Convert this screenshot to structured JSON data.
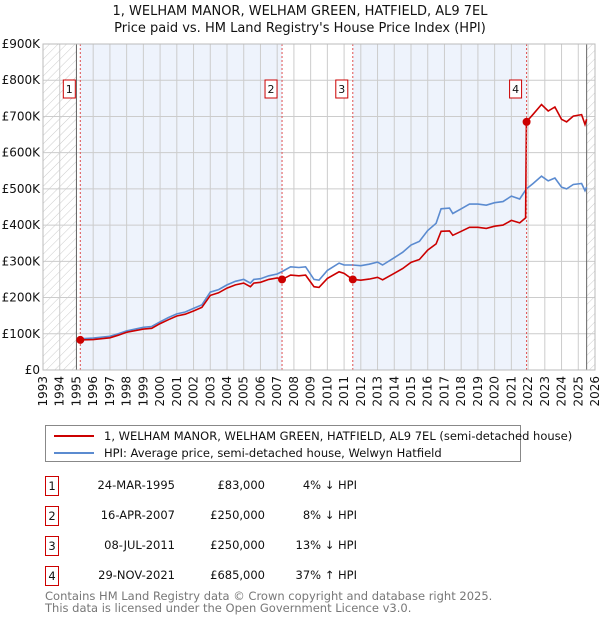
{
  "title": "1, WELHAM MANOR, WELHAM GREEN, HATFIELD, AL9 7EL",
  "subtitle": "Price paid vs. HM Land Registry's House Price Index (HPI)",
  "chart_data": {
    "type": "line",
    "xlim": [
      1993,
      2026
    ],
    "ylim": [
      0,
      900000
    ],
    "yticks": [
      0,
      100000,
      200000,
      300000,
      400000,
      500000,
      600000,
      700000,
      800000,
      900000
    ],
    "ytick_labels": [
      "£0",
      "£100K",
      "£200K",
      "£300K",
      "£400K",
      "£500K",
      "£600K",
      "£700K",
      "£800K",
      "£900K"
    ],
    "xtick_labels": [
      "1993",
      "1994",
      "1995",
      "1996",
      "1997",
      "1998",
      "1999",
      "2000",
      "2001",
      "2002",
      "2003",
      "2004",
      "2005",
      "2006",
      "2007",
      "2008",
      "2009",
      "2010",
      "2011",
      "2012",
      "2013",
      "2014",
      "2015",
      "2016",
      "2017",
      "2018",
      "2019",
      "2020",
      "2021",
      "2022",
      "2023",
      "2024",
      "2025",
      "2026"
    ],
    "grid": true,
    "series": [
      {
        "name": "1, WELHAM MANOR, WELHAM GREEN, HATFIELD, AL9 7EL (semi-detached house)",
        "color": "#cc0000",
        "x": [
          1995.2,
          1996,
          1997,
          1997.5,
          1998,
          1999,
          1999.5,
          2000,
          2000.5,
          2001,
          2001.5,
          2002,
          2002.5,
          2003,
          2003.5,
          2004,
          2004.5,
          2005,
          2005.4,
          2005.6,
          2006,
          2006.5,
          2007,
          2007.3,
          2007.8,
          2008.3,
          2008.7,
          2009.2,
          2009.5,
          2010,
          2010.7,
          2011,
          2011.5,
          2012,
          2012.5,
          2013,
          2013.3,
          2014,
          2014.5,
          2015,
          2015.5,
          2016,
          2016.5,
          2016.8,
          2017.3,
          2017.5,
          2018,
          2018.5,
          2019,
          2019.5,
          2020,
          2020.5,
          2021,
          2021.5,
          2021.85,
          2021.9,
          2022.3,
          2022.8,
          2023.2,
          2023.6,
          2024,
          2024.3,
          2024.7,
          2025.2,
          2025.4,
          2025.5
        ],
        "y": [
          83,
          84,
          89,
          96,
          104,
          113,
          115,
          128,
          139,
          149,
          154,
          163,
          173,
          206,
          213,
          226,
          235,
          240,
          230,
          240,
          242,
          250,
          254,
          250,
          262,
          260,
          262,
          230,
          228,
          253,
          271,
          267,
          250,
          248,
          251,
          256,
          249,
          267,
          280,
          297,
          305,
          331,
          348,
          383,
          384,
          372,
          383,
          394,
          394,
          391,
          397,
          400,
          413,
          406,
          420,
          685,
          706,
          733,
          715,
          726,
          692,
          685,
          701,
          705,
          678,
          692
        ]
      },
      {
        "name": "HPI: Average price, semi-detached house, Welwyn Hatfield",
        "color": "#5b8bd0",
        "x": [
          1995.2,
          1996,
          1997,
          1997.5,
          1998,
          1999,
          1999.5,
          2000,
          2000.5,
          2001,
          2001.5,
          2002,
          2002.5,
          2003,
          2003.5,
          2004,
          2004.5,
          2005,
          2005.4,
          2005.6,
          2006,
          2006.5,
          2007,
          2007.3,
          2007.8,
          2008.3,
          2008.7,
          2009.2,
          2009.5,
          2010,
          2010.7,
          2011,
          2011.5,
          2012,
          2012.5,
          2013,
          2013.3,
          2014,
          2014.5,
          2015,
          2015.5,
          2016,
          2016.5,
          2016.8,
          2017.3,
          2017.5,
          2018,
          2018.5,
          2019,
          2019.5,
          2020,
          2020.5,
          2021,
          2021.5,
          2021.9,
          2022.3,
          2022.8,
          2023.2,
          2023.6,
          2024,
          2024.3,
          2024.7,
          2025.2,
          2025.4,
          2025.5
        ],
        "y": [
          86,
          88,
          93,
          100,
          108,
          118,
          120,
          133,
          145,
          155,
          160,
          170,
          180,
          215,
          222,
          235,
          245,
          250,
          240,
          250,
          252,
          260,
          265,
          272,
          285,
          283,
          285,
          250,
          248,
          275,
          295,
          290,
          290,
          288,
          292,
          298,
          290,
          310,
          325,
          345,
          355,
          385,
          405,
          445,
          447,
          432,
          445,
          458,
          458,
          455,
          462,
          465,
          480,
          472,
          500,
          515,
          535,
          522,
          530,
          505,
          500,
          512,
          515,
          495,
          505
        ]
      }
    ],
    "y_units": "thousands GBP",
    "sales": [
      {
        "label": "1",
        "x": 1995.23,
        "y": 83000
      },
      {
        "label": "2",
        "x": 2007.29,
        "y": 250000
      },
      {
        "label": "3",
        "x": 2011.52,
        "y": 250000
      },
      {
        "label": "4",
        "x": 2021.91,
        "y": 685000
      }
    ],
    "data_end": 2025.5
  },
  "legend": {
    "property": "1, WELHAM MANOR, WELHAM GREEN, HATFIELD, AL9 7EL (semi-detached house)",
    "hpi": "HPI: Average price, semi-detached house, Welwyn Hatfield"
  },
  "transactions": [
    {
      "num": "1",
      "date": "24-MAR-1995",
      "price": "£83,000",
      "hpi": "4% ↓ HPI"
    },
    {
      "num": "2",
      "date": "16-APR-2007",
      "price": "£250,000",
      "hpi": "8% ↓ HPI"
    },
    {
      "num": "3",
      "date": "08-JUL-2011",
      "price": "£250,000",
      "hpi": "13% ↓ HPI"
    },
    {
      "num": "4",
      "date": "29-NOV-2021",
      "price": "£685,000",
      "hpi": "37% ↑ HPI"
    }
  ],
  "footer": [
    "Contains HM Land Registry data © Crown copyright and database right 2025.",
    "This data is licensed under the Open Government Licence v3.0."
  ]
}
